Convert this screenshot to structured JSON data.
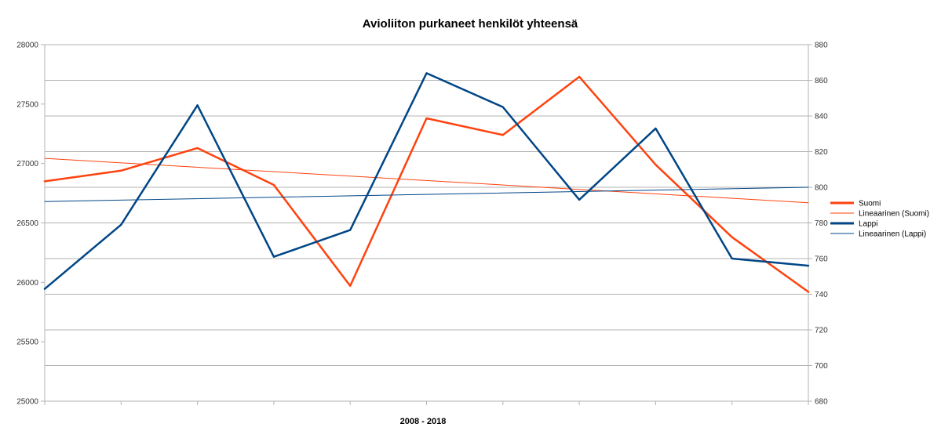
{
  "chart_data": {
    "type": "line",
    "title": "Avioliiton purkaneet henkilöt yhteensä",
    "xlabel": "2008 - 2018",
    "grid": true,
    "legend_position": "right",
    "x_count": 11,
    "y_left": {
      "min": 25000,
      "max": 28000,
      "step": 500
    },
    "y_right": {
      "min": 680,
      "max": 880,
      "step": 20
    },
    "series": [
      {
        "name": "Suomi",
        "axis": "left",
        "color": "#ff420e",
        "width": 2.5,
        "values": [
          26850,
          26940,
          27130,
          26820,
          25970,
          27380,
          27240,
          27730,
          26990,
          26380,
          25920
        ]
      },
      {
        "name": "Lineaarinen (Suomi)",
        "axis": "left",
        "color": "#ff420e",
        "width": 1,
        "trend": true,
        "values": [
          27043,
          26670
        ]
      },
      {
        "name": "Lappi",
        "axis": "right",
        "color": "#004586",
        "width": 2.5,
        "values": [
          743,
          779,
          846,
          761,
          776,
          864,
          845,
          793,
          833,
          760,
          756
        ]
      },
      {
        "name": "Lineaarinen (Lappi)",
        "axis": "right",
        "color": "#004586",
        "width": 1,
        "trend": true,
        "values": [
          792,
          800
        ]
      }
    ]
  }
}
